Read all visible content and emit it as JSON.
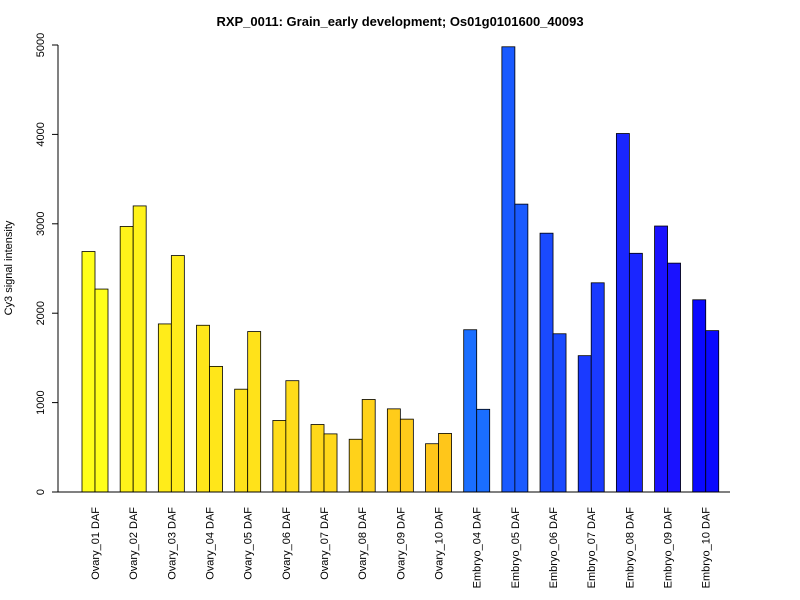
{
  "chart_data": {
    "type": "bar",
    "title": "RXP_0011: Grain_early development; Os01g0101600_40093",
    "xlabel": "",
    "ylabel": "Cy3 signal intensity",
    "ylim": [
      0,
      5000
    ],
    "yticks": [
      0,
      1000,
      2000,
      3000,
      4000,
      5000
    ],
    "grid": false,
    "legend": "none",
    "categories": [
      "Ovary_01 DAF",
      "Ovary_02 DAF",
      "Ovary_03 DAF",
      "Ovary_04 DAF",
      "Ovary_05 DAF",
      "Ovary_06 DAF",
      "Ovary_07 DAF",
      "Ovary_08 DAF",
      "Ovary_09 DAF",
      "Ovary_10 DAF",
      "Embryo_04 DAF",
      "Embryo_05 DAF",
      "Embryo_06 DAF",
      "Embryo_07 DAF",
      "Embryo_08 DAF",
      "Embryo_09 DAF",
      "Embryo_10 DAF"
    ],
    "series": [
      {
        "values": [
          2690,
          2970,
          1880,
          1865,
          1150,
          800,
          755,
          590,
          930,
          540,
          1815,
          4980,
          2895,
          1525,
          4010,
          2975,
          2150
        ]
      },
      {
        "values": [
          2270,
          3200,
          2645,
          1405,
          1795,
          1245,
          650,
          1035,
          815,
          655,
          925,
          3220,
          1770,
          2340,
          2670,
          2560,
          1805
        ]
      }
    ],
    "bar_colors": [
      "#ffff1a",
      "#fff21a",
      "#ffec1a",
      "#ffe61a",
      "#ffe21a",
      "#ffdc1a",
      "#ffd81a",
      "#ffd21a",
      "#ffcc1a",
      "#ffc61a",
      "#1a6eff",
      "#1a5aff",
      "#1a4aff",
      "#1a3aff",
      "#1a26ff",
      "#1a12ff",
      "#0a08ff"
    ]
  }
}
